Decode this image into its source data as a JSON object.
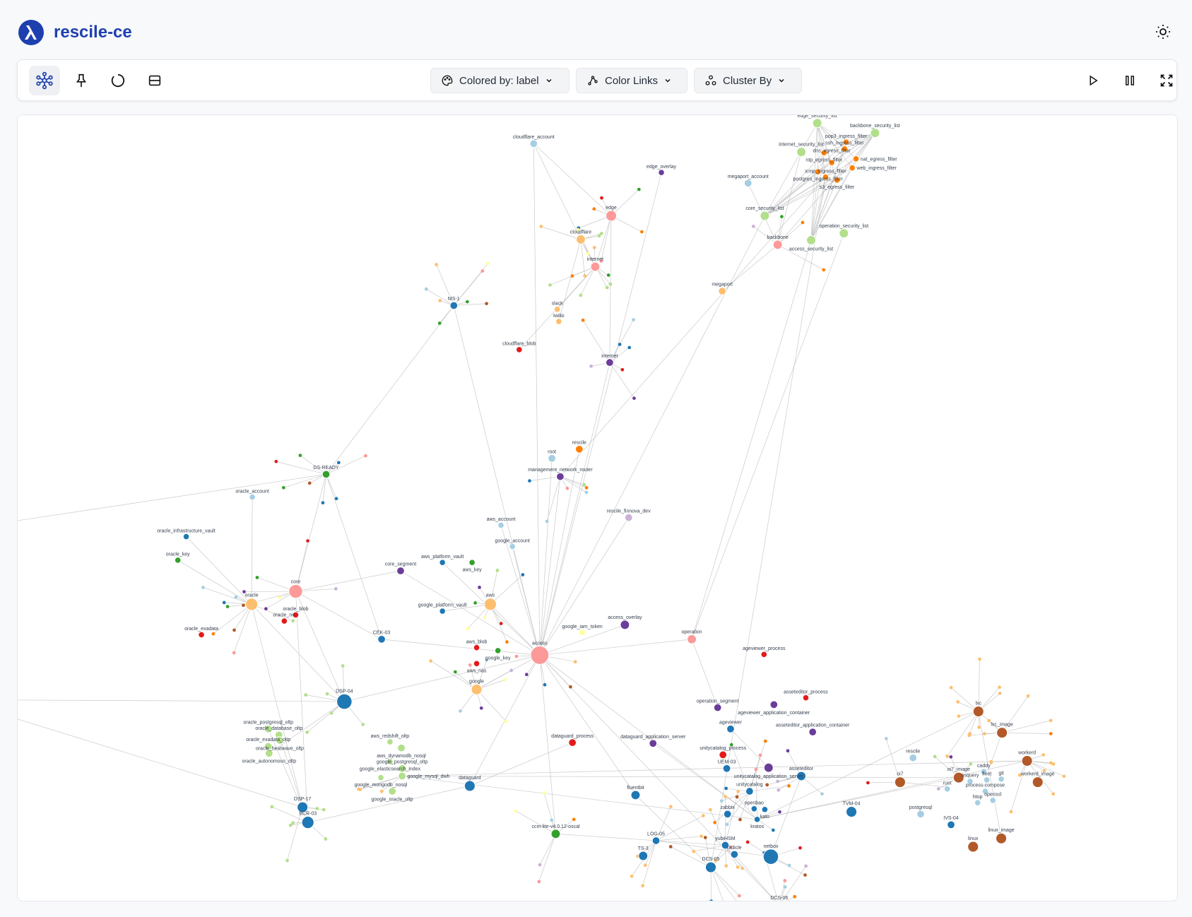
{
  "app": {
    "title": "rescile-ce"
  },
  "header": {
    "theme_icon": "sun-icon"
  },
  "toolbar": {
    "left_tools": [
      {
        "name": "graph-view",
        "icon": "network-icon",
        "active": true
      },
      {
        "name": "pin",
        "icon": "pin-icon"
      },
      {
        "name": "reset",
        "icon": "circle-refresh-icon"
      },
      {
        "name": "panel",
        "icon": "panel-icon"
      }
    ],
    "colored_by_label": "Colored by: label",
    "color_links_label": "Color Links",
    "cluster_by_label": "Cluster By",
    "right_tools": [
      {
        "name": "play",
        "icon": "play-icon"
      },
      {
        "name": "pause",
        "icon": "pause-icon"
      },
      {
        "name": "fullscreen",
        "icon": "expand-icon"
      }
    ]
  },
  "colors": {
    "brand": "#1e40af",
    "db": "#1f77b4",
    "lb": "#a6cee3",
    "or": "#ff7f00",
    "lo": "#fdbf6f",
    "gr": "#33a02c",
    "lg": "#b2df8a",
    "rd": "#e31a1c",
    "pk": "#fb9a99",
    "pu": "#6a3d9a",
    "lp": "#cab2d6",
    "br": "#b15928",
    "ly": "#ffff99",
    "edge": "#bdbdbd"
  },
  "graph": {
    "nodes": [
      {
        "label": "cloudflare_account",
        "group": "lb"
      },
      {
        "label": "edge_overlay",
        "group": "pu"
      },
      {
        "label": "edge_security_list",
        "group": "lg"
      },
      {
        "label": "backbone_security_list",
        "group": "lg"
      },
      {
        "label": "internet_security_list",
        "group": "lg"
      },
      {
        "label": "megaport_account",
        "group": "lb"
      },
      {
        "label": "edge",
        "group": "pk"
      },
      {
        "label": "core_security_list",
        "group": "lg"
      },
      {
        "label": "cloudflare",
        "group": "lo"
      },
      {
        "label": "backbone",
        "group": "pk"
      },
      {
        "label": "access_security_list",
        "group": "lg"
      },
      {
        "label": "operation_security_list",
        "group": "lg"
      },
      {
        "label": "internet",
        "group": "pk"
      },
      {
        "label": "megaport",
        "group": "lo"
      },
      {
        "label": "MS-1",
        "group": "db"
      },
      {
        "label": "slack",
        "group": "lo"
      },
      {
        "label": "twilio",
        "group": "lo"
      },
      {
        "label": "cloudflare_blob",
        "group": "rd"
      },
      {
        "label": "internet",
        "group": "pu"
      },
      {
        "label": "rescile",
        "group": "or"
      },
      {
        "label": "root",
        "group": "lb"
      },
      {
        "label": "management_network_router",
        "group": "pu"
      },
      {
        "label": "DS-READY",
        "group": "gr"
      },
      {
        "label": "oracle_account",
        "group": "lb"
      },
      {
        "label": "rescile_finnova_dev",
        "group": "lp"
      },
      {
        "label": "aws_account",
        "group": "lb"
      },
      {
        "label": "oracle_infrastructure_vault",
        "group": "db"
      },
      {
        "label": "google_account",
        "group": "lb"
      },
      {
        "label": "oracle_key",
        "group": "gr"
      },
      {
        "label": "aws_platform_vault",
        "group": "db"
      },
      {
        "label": "aws_key",
        "group": "gr"
      },
      {
        "label": "core_segment",
        "group": "pu"
      },
      {
        "label": "core",
        "group": "pk"
      },
      {
        "label": "aws",
        "group": "lo"
      },
      {
        "label": "oracle",
        "group": "lo"
      },
      {
        "label": "oracle_blob",
        "group": "rd"
      },
      {
        "label": "google_platform_vault",
        "group": "db"
      },
      {
        "label": "oracle_nic",
        "group": "rd"
      },
      {
        "label": "oracle_exadata",
        "group": "rd"
      },
      {
        "label": "access_overlay",
        "group": "pu"
      },
      {
        "label": "google_iam_token",
        "group": "ly"
      },
      {
        "label": "CEK-03",
        "group": "db"
      },
      {
        "label": "operation",
        "group": "pk"
      },
      {
        "label": "aws_blob",
        "group": "rd"
      },
      {
        "label": "google_key",
        "group": "gr"
      },
      {
        "label": "access",
        "group": "pk"
      },
      {
        "label": "aws_nas",
        "group": "rd"
      },
      {
        "label": "ageviewer_process",
        "group": "rd"
      },
      {
        "label": "google",
        "group": "lo"
      },
      {
        "label": "DSP-04",
        "group": "db"
      },
      {
        "label": "operation_segment",
        "group": "pu"
      },
      {
        "label": "ageviewer_application_container",
        "group": "pu"
      },
      {
        "label": "asseteditor_process",
        "group": "rd"
      },
      {
        "label": "lxc",
        "group": "br"
      },
      {
        "label": "ageviewer",
        "group": "db"
      },
      {
        "label": "asseteditor_application_container",
        "group": "pu"
      },
      {
        "label": "lxc_image",
        "group": "br"
      },
      {
        "label": "oracle_postgresql_oltp",
        "group": "lg"
      },
      {
        "label": "oracle_database_oltp",
        "group": "lg"
      },
      {
        "label": "oracle_exadata_oltp",
        "group": "lg"
      },
      {
        "label": "oracle_heatwave_oltp",
        "group": "lg"
      },
      {
        "label": "oracle_autonomous_oltp",
        "group": "lg"
      },
      {
        "label": "dataguard_process",
        "group": "rd"
      },
      {
        "label": "dataguard_application_server",
        "group": "pu"
      },
      {
        "label": "aws_redshift_oltp",
        "group": "lg"
      },
      {
        "label": "aws_dynamodb_nosql",
        "group": "lg"
      },
      {
        "label": "unitycatalog_process",
        "group": "rd"
      },
      {
        "label": "rescile",
        "group": "lb"
      },
      {
        "label": "workerd",
        "group": "br"
      },
      {
        "label": "google_elasticsearch_index",
        "group": "lg"
      },
      {
        "label": "google_postgresql_oltp",
        "group": "lg"
      },
      {
        "label": "UEM-03",
        "group": "db"
      },
      {
        "label": "unitycatalog_application_server",
        "group": "pu"
      },
      {
        "label": "asseteditor",
        "group": "db"
      },
      {
        "label": "oi7_image",
        "group": "br"
      },
      {
        "label": "workerd_image",
        "group": "br"
      },
      {
        "label": "google_mongodb_nosql",
        "group": "lg"
      },
      {
        "label": "google_mysql_dwh",
        "group": "lg"
      },
      {
        "label": "oi7",
        "group": "br"
      },
      {
        "label": "dataguard",
        "group": "db"
      },
      {
        "label": "google_oracle_oltp",
        "group": "lg"
      },
      {
        "label": "unitycatalog",
        "group": "db"
      },
      {
        "label": "fluentbit",
        "group": "db"
      },
      {
        "label": "caddy",
        "group": "lb"
      },
      {
        "label": "osquery",
        "group": "lb"
      },
      {
        "label": "fleet",
        "group": "lb"
      },
      {
        "label": "git",
        "group": "lb"
      },
      {
        "label": "rust",
        "group": "lb"
      },
      {
        "label": "process-compose",
        "group": "lb"
      },
      {
        "label": "htop",
        "group": "lb"
      },
      {
        "label": "openssl",
        "group": "lb"
      },
      {
        "label": "openbao",
        "group": "db"
      },
      {
        "label": "kato",
        "group": "db"
      },
      {
        "label": "zabbix",
        "group": "db"
      },
      {
        "label": "kratos",
        "group": "db"
      },
      {
        "label": "TVM-04",
        "group": "db"
      },
      {
        "label": "postgresql",
        "group": "lb"
      },
      {
        "label": "DSP-17",
        "group": "db"
      },
      {
        "label": "BCR-03",
        "group": "db"
      },
      {
        "label": "IVS-04",
        "group": "db"
      },
      {
        "label": "ccm-lite-v4.0.12-oscal",
        "group": "gr"
      },
      {
        "label": "linux_image",
        "group": "br"
      },
      {
        "label": "LOG-05",
        "group": "db"
      },
      {
        "label": "linux",
        "group": "br"
      },
      {
        "label": "yubiHSM",
        "group": "db"
      },
      {
        "label": "TS-3",
        "group": "db"
      },
      {
        "label": "radicle",
        "group": "db"
      },
      {
        "label": "netbox",
        "group": "db"
      },
      {
        "label": "DCS-05",
        "group": "db"
      },
      {
        "label": "DCS-06",
        "group": "db"
      },
      {
        "label": "icmp_ingress_filter",
        "group": "or"
      },
      {
        "label": "ntp_egress_filter",
        "group": "or"
      },
      {
        "label": "dns_egress_filter",
        "group": "or"
      },
      {
        "label": "postgres_ingress_filter",
        "group": "or"
      },
      {
        "label": "s3_egress_filter",
        "group": "or"
      },
      {
        "label": "web_ingress_filter",
        "group": "or"
      },
      {
        "label": "ssh_ingress_filter",
        "group": "or"
      },
      {
        "label": "nat_egress_filter",
        "group": "or"
      },
      {
        "label": "pop3_ingress_filter",
        "group": "or"
      }
    ]
  }
}
